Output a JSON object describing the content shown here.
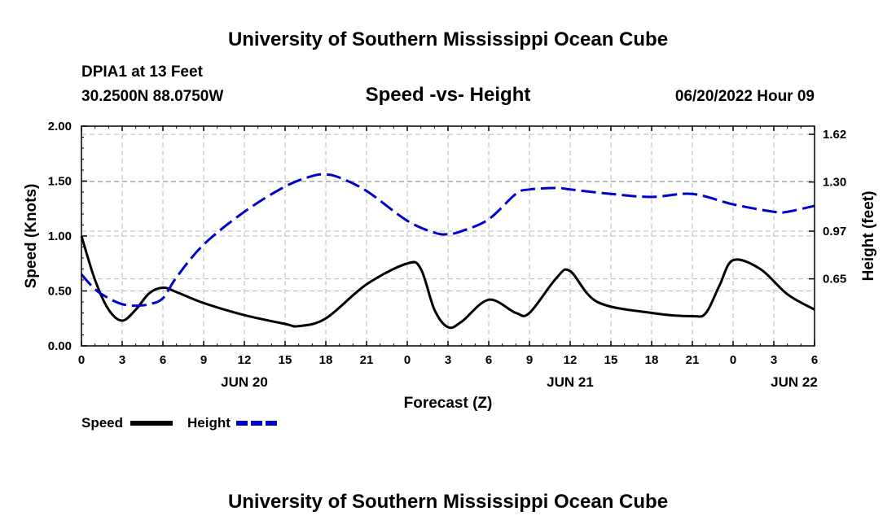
{
  "page": {
    "title": "University of Southern Mississippi Ocean Cube",
    "footer_title": "University of Southern Mississippi Ocean Cube",
    "station": "DPIA1 at 13 Feet",
    "coords": "30.2500N  88.0750W",
    "subtitle": "Speed -vs- Height",
    "datetime": "06/20/2022 Hour 09"
  },
  "chart_data": {
    "type": "line",
    "xlabel": "Forecast (Z)",
    "ylabel_left": "Speed (Knots)",
    "ylabel_right": "Height (feet)",
    "xlim": [
      0,
      54
    ],
    "ylim_left": [
      0,
      2.0
    ],
    "ylim_right": [
      0.2,
      1.675
    ],
    "x_ticks": [
      0,
      3,
      6,
      9,
      12,
      15,
      18,
      21,
      24,
      27,
      30,
      33,
      36,
      39,
      42,
      45,
      48,
      51,
      54
    ],
    "x_tick_labels": [
      "0",
      "3",
      "6",
      "9",
      "12",
      "15",
      "18",
      "21",
      "0",
      "3",
      "6",
      "9",
      "12",
      "15",
      "18",
      "21",
      "0",
      "3",
      "6"
    ],
    "day_labels": [
      {
        "x": 12,
        "label": "JUN 20"
      },
      {
        "x": 36,
        "label": "JUN 21"
      },
      {
        "x": 52.5,
        "label": "JUN 22"
      }
    ],
    "left_ticks": [
      0,
      0.5,
      1.0,
      1.5,
      2.0
    ],
    "left_tick_labels": [
      "0.00",
      "0.50",
      "1.00",
      "1.50",
      "2.00"
    ],
    "right_ticks": [
      0.65,
      0.97,
      1.3,
      1.62
    ],
    "right_tick_labels": [
      "0.65",
      "0.97",
      "1.30",
      "1.62"
    ],
    "grid": true,
    "series": [
      {
        "name": "Speed",
        "axis": "left",
        "color": "#000000",
        "dashed": false,
        "x": [
          0,
          1,
          2,
          3,
          4,
          5,
          6,
          7,
          9,
          12,
          15,
          16,
          18,
          21,
          24,
          25,
          26,
          27,
          28,
          30,
          32,
          33,
          35,
          36,
          38,
          42,
          45,
          46,
          47,
          48,
          50,
          52,
          54
        ],
        "y": [
          1.0,
          0.6,
          0.33,
          0.23,
          0.33,
          0.48,
          0.53,
          0.49,
          0.39,
          0.28,
          0.2,
          0.18,
          0.25,
          0.56,
          0.75,
          0.7,
          0.33,
          0.17,
          0.22,
          0.42,
          0.3,
          0.3,
          0.62,
          0.68,
          0.4,
          0.3,
          0.27,
          0.3,
          0.55,
          0.78,
          0.7,
          0.47,
          0.33
        ]
      },
      {
        "name": "Height",
        "axis": "right",
        "color": "#0000cc",
        "dashed": true,
        "x": [
          0,
          1,
          2,
          3,
          4,
          5,
          6,
          7,
          9,
          12,
          15,
          17,
          18,
          19,
          21,
          24,
          26,
          27,
          28,
          30,
          32,
          33,
          35,
          36,
          39,
          42,
          45,
          48,
          51,
          52,
          54
        ],
        "y": [
          0.68,
          0.58,
          0.52,
          0.48,
          0.47,
          0.48,
          0.52,
          0.66,
          0.88,
          1.1,
          1.27,
          1.34,
          1.35,
          1.33,
          1.24,
          1.04,
          0.96,
          0.95,
          0.97,
          1.05,
          1.22,
          1.25,
          1.26,
          1.25,
          1.22,
          1.2,
          1.22,
          1.15,
          1.1,
          1.1,
          1.14
        ]
      }
    ]
  },
  "legend": {
    "speed_label": "Speed",
    "height_label": "Height"
  }
}
